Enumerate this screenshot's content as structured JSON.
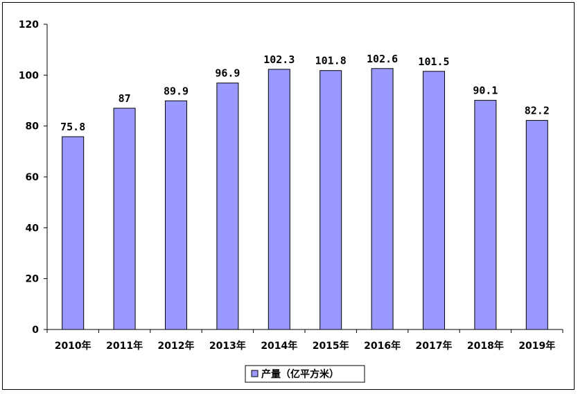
{
  "chart_data": {
    "type": "bar",
    "title": "",
    "xlabel": "",
    "ylabel": "",
    "categories": [
      "2010年",
      "2011年",
      "2012年",
      "2013年",
      "2014年",
      "2015年",
      "2016年",
      "2017年",
      "2018年",
      "2019年"
    ],
    "value_labels": [
      "75.8",
      "87",
      "89.9",
      "96.9",
      "102.3",
      "101.8",
      "102.6",
      "101.5",
      "90.1",
      "82.2"
    ],
    "series": [
      {
        "name": "产量（亿平方米）",
        "values": [
          75.8,
          87,
          89.9,
          96.9,
          102.3,
          101.8,
          102.6,
          101.5,
          90.1,
          82.2
        ],
        "color": "#9999ff"
      }
    ],
    "ylim": [
      0,
      120
    ],
    "yticks": [
      0,
      20,
      40,
      60,
      80,
      100,
      120
    ],
    "ytick_labels": [
      "0",
      "20",
      "40",
      "60",
      "80",
      "100",
      "120"
    ],
    "grid": false,
    "legend": "bottom-center"
  }
}
